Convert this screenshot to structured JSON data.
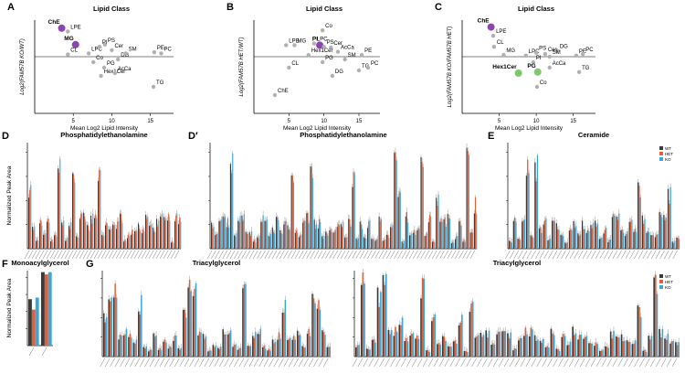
{
  "colors": {
    "wt": "#3a3a3a",
    "het": "#e0603a",
    "ko": "#3aa7d8",
    "dot": "#b0b0b0",
    "highlight_purple": "#8e44ad",
    "highlight_green": "#7cc96a",
    "zero_line": "#000000"
  },
  "legend": {
    "labels": [
      "WT",
      "HET",
      "KO"
    ]
  },
  "scatter_panels": [
    {
      "letter": "A",
      "title": "Lipid Class",
      "ylabel": "Log2(FAM57B KO/WT)",
      "xlabel": "Mean Log2 Lipid Intensity",
      "xticks": [
        "5",
        "10",
        "15"
      ],
      "points": [
        {
          "label": "ChE",
          "x": 3.5,
          "y": 1.3,
          "hl": "purple"
        },
        {
          "label": "LPE",
          "x": 4.3,
          "y": 1.15,
          "hl": ""
        },
        {
          "label": "MG",
          "x": 5.3,
          "y": 0.55,
          "hl": "purple"
        },
        {
          "label": "CL",
          "x": 4.3,
          "y": 0.1,
          "hl": ""
        },
        {
          "label": "LPC",
          "x": 7.0,
          "y": 0.15,
          "hl": ""
        },
        {
          "label": "Co",
          "x": 7.6,
          "y": -0.1,
          "hl": ""
        },
        {
          "label": "PI",
          "x": 8.4,
          "y": 0.45,
          "hl": ""
        },
        {
          "label": "PS",
          "x": 9.1,
          "y": 0.55,
          "hl": ""
        },
        {
          "label": "Cer",
          "x": 10.0,
          "y": 0.3,
          "hl": ""
        },
        {
          "label": "Hex1Cer",
          "x": 8.6,
          "y": -0.35,
          "hl": ""
        },
        {
          "label": "PG",
          "x": 9.0,
          "y": -0.2,
          "hl": ""
        },
        {
          "label": "AcCa",
          "x": 10.4,
          "y": -0.3,
          "hl": ""
        },
        {
          "label": "DG",
          "x": 10.8,
          "y": -0.05,
          "hl": ""
        },
        {
          "label": "SM",
          "x": 11.8,
          "y": 0.15,
          "hl": ""
        },
        {
          "label": "PE",
          "x": 15.5,
          "y": 0.2,
          "hl": ""
        },
        {
          "label": "PC",
          "x": 16.4,
          "y": 0.15,
          "hl": ""
        },
        {
          "label": "TG",
          "x": 15.4,
          "y": -0.55,
          "hl": ""
        }
      ]
    },
    {
      "letter": "B",
      "title": "Lipid Class",
      "ylabel": "Log2(FAM57B HET/WT)",
      "xlabel": "Mean Log2 Lipid Intensity",
      "xticks": [
        "5",
        "10",
        "15"
      ],
      "points": [
        {
          "label": "Co",
          "x": 9.8,
          "y": 0.8,
          "hl": ""
        },
        {
          "label": "LPE",
          "x": 4.6,
          "y": 0.35,
          "hl": ""
        },
        {
          "label": "MG",
          "x": 5.8,
          "y": 0.35,
          "hl": ""
        },
        {
          "label": "LPC",
          "x": 8.6,
          "y": 0.4,
          "hl": ""
        },
        {
          "label": "PI",
          "x": 9.4,
          "y": 0.35,
          "hl": "purple"
        },
        {
          "label": "PS",
          "x": 10.0,
          "y": 0.3,
          "hl": ""
        },
        {
          "label": "Cer",
          "x": 11.0,
          "y": 0.28,
          "hl": ""
        },
        {
          "label": "AcCa",
          "x": 12.0,
          "y": 0.15,
          "hl": ""
        },
        {
          "label": "Hex1Cer",
          "x": 7.8,
          "y": 0.05,
          "hl": ""
        },
        {
          "label": "CL",
          "x": 5.0,
          "y": -0.2,
          "hl": ""
        },
        {
          "label": "ChE",
          "x": 3.0,
          "y": -0.7,
          "hl": ""
        },
        {
          "label": "PG",
          "x": 9.8,
          "y": -0.1,
          "hl": ""
        },
        {
          "label": "DG",
          "x": 11.2,
          "y": -0.35,
          "hl": ""
        },
        {
          "label": "SM",
          "x": 13.0,
          "y": -0.05,
          "hl": ""
        },
        {
          "label": "PE",
          "x": 15.4,
          "y": 0.05,
          "hl": ""
        },
        {
          "label": "TG",
          "x": 15.0,
          "y": -0.25,
          "hl": ""
        },
        {
          "label": "PC",
          "x": 16.3,
          "y": -0.2,
          "hl": ""
        }
      ]
    },
    {
      "letter": "C",
      "title": "Lipid Class",
      "ylabel": "Log2(FAM57B KO/FAM57B HET)",
      "xlabel": "Mean Log2 Lipid Intensity",
      "xticks": [
        "5",
        "10",
        "15"
      ],
      "points": [
        {
          "label": "ChE",
          "x": 3.9,
          "y": 1.35,
          "hl": "purple"
        },
        {
          "label": "LPE",
          "x": 4.2,
          "y": 0.95,
          "hl": ""
        },
        {
          "label": "CL",
          "x": 4.3,
          "y": 0.45,
          "hl": ""
        },
        {
          "label": "MG",
          "x": 5.6,
          "y": 0.08,
          "hl": ""
        },
        {
          "label": "LPC",
          "x": 8.6,
          "y": 0.05,
          "hl": ""
        },
        {
          "label": "PS",
          "x": 10.0,
          "y": 0.18,
          "hl": ""
        },
        {
          "label": "Cer",
          "x": 11.2,
          "y": 0.12,
          "hl": ""
        },
        {
          "label": "DG",
          "x": 12.8,
          "y": 0.28,
          "hl": ""
        },
        {
          "label": "PI",
          "x": 9.6,
          "y": -0.1,
          "hl": ""
        },
        {
          "label": "SM",
          "x": 11.8,
          "y": 0.0,
          "hl": ""
        },
        {
          "label": "AcCa",
          "x": 11.8,
          "y": -0.2,
          "hl": ""
        },
        {
          "label": "Hex1Cer",
          "x": 7.6,
          "y": -0.3,
          "hl": "green"
        },
        {
          "label": "PG",
          "x": 10.2,
          "y": -0.28,
          "hl": "green"
        },
        {
          "label": "Co",
          "x": 10.1,
          "y": -0.55,
          "hl": ""
        },
        {
          "label": "PE",
          "x": 15.4,
          "y": 0.05,
          "hl": ""
        },
        {
          "label": "PC",
          "x": 16.3,
          "y": 0.12,
          "hl": ""
        },
        {
          "label": "TG",
          "x": 15.8,
          "y": -0.28,
          "hl": ""
        }
      ]
    }
  ],
  "bar_panels": [
    {
      "letter": "D",
      "title": "Phosphatidylethanolamine",
      "ylabel": "Normalized Peak Area",
      "n": 42,
      "legend": false
    },
    {
      "letter": "D′",
      "title": "Phosphatidylethanolamine",
      "ylabel": "",
      "n": 70,
      "legend": false
    },
    {
      "letter": "E",
      "title": "Ceramide",
      "ylabel": "",
      "n": 40,
      "legend": true
    },
    {
      "letter": "F",
      "title": "Monoacylglycerol",
      "ylabel": "Normalized Peak Area",
      "n": 2,
      "legend": false
    },
    {
      "letter": "G",
      "title": "Triacylglycerol",
      "ylabel": "",
      "n": 46,
      "legend": false
    },
    {
      "letter": "",
      "title": "Triacylglycerol",
      "ylabel": "",
      "n": 60,
      "legend": true
    }
  ],
  "chart_data": [
    {
      "type": "scatter",
      "panel": "A",
      "title": "Lipid Class",
      "xlabel": "Mean Log2 Lipid Intensity",
      "ylabel": "Log2(FAM57B KO/WT)",
      "xlim": [
        0,
        18
      ],
      "ylim": [
        -1,
        1.5
      ]
    },
    {
      "type": "scatter",
      "panel": "B",
      "title": "Lipid Class",
      "xlabel": "Mean Log2 Lipid Intensity",
      "ylabel": "Log2(FAM57B HET/WT)",
      "xlim": [
        0,
        18
      ],
      "ylim": [
        -1,
        1.0
      ]
    },
    {
      "type": "scatter",
      "panel": "C",
      "title": "Lipid Class",
      "xlabel": "Mean Log2 Lipid Intensity",
      "ylabel": "Log2(FAM57B KO/FAM57B HET)",
      "xlim": [
        0,
        18
      ],
      "ylim": [
        -1,
        1.5
      ]
    },
    {
      "type": "bar",
      "panel": "D",
      "title": "Phosphatidylethanolamine",
      "ylabel": "Normalized Peak Area",
      "series": [
        {
          "name": "WT"
        },
        {
          "name": "HET"
        },
        {
          "name": "KO"
        }
      ]
    },
    {
      "type": "bar",
      "panel": "D′",
      "title": "Phosphatidylethanolamine",
      "series": [
        {
          "name": "WT"
        },
        {
          "name": "HET"
        },
        {
          "name": "KO"
        }
      ]
    },
    {
      "type": "bar",
      "panel": "E",
      "title": "Ceramide",
      "series": [
        {
          "name": "WT"
        },
        {
          "name": "HET"
        },
        {
          "name": "KO"
        }
      ]
    },
    {
      "type": "bar",
      "panel": "F",
      "title": "Monoacylglycerol",
      "ylabel": "Normalized Peak Area",
      "series": [
        {
          "name": "WT"
        },
        {
          "name": "HET"
        },
        {
          "name": "KO"
        }
      ]
    },
    {
      "type": "bar",
      "panel": "G",
      "title": "Triacylglycerol",
      "series": [
        {
          "name": "WT"
        },
        {
          "name": "HET"
        },
        {
          "name": "KO"
        }
      ]
    }
  ]
}
